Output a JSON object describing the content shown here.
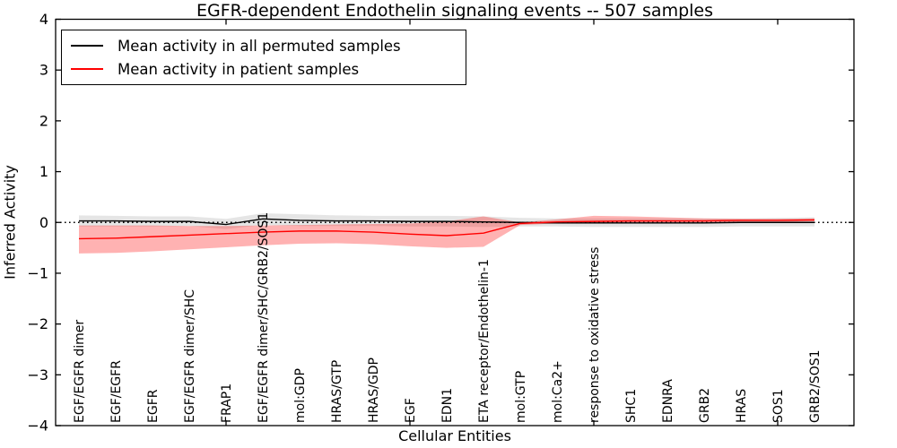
{
  "chart_data": {
    "type": "line",
    "title": "EGFR-dependent Endothelin signaling events -- 507 samples",
    "xlabel": "Cellular Entities",
    "ylabel": "Inferred Activity",
    "ylim": [
      -4,
      4
    ],
    "ytick_labels": [
      "4",
      "3",
      "2",
      "1",
      "0",
      "−1",
      "−2",
      "−3",
      "−4"
    ],
    "ytick_values": [
      4,
      3,
      2,
      1,
      0,
      -1,
      -2,
      -3,
      -4
    ],
    "grid": false,
    "legend_position": "upper left",
    "zero_line": {
      "y": 0,
      "style": "dotted",
      "color": "#000000"
    },
    "categories": [
      "EGF/EGFR dimer",
      "EGF/EGFR",
      "EGFR",
      "EGF/EGFR dimer/SHC",
      "FRAP1",
      "EGF/EGFR dimer/SHC/GRB2/SOS1",
      "mol:GDP",
      "HRAS/GTP",
      "HRAS/GDP",
      "EGF",
      "EDN1",
      "ETA receptor/Endothelin-1",
      "mol:GTP",
      "mol:Ca2+",
      "response to oxidative stress",
      "SHC1",
      "EDNRA",
      "GRB2",
      "HRAS",
      "SOS1",
      "GRB2/SOS1"
    ],
    "series": [
      {
        "name": "permuted",
        "label": "Mean activity in all permuted samples",
        "color": "#000000",
        "band_color": "rgba(0,0,0,0.10)",
        "values": [
          0.03,
          0.03,
          0.02,
          0.02,
          -0.04,
          0.07,
          0.04,
          0.03,
          0.03,
          0.02,
          0.02,
          0.01,
          0.0,
          -0.01,
          -0.01,
          -0.01,
          -0.01,
          -0.01,
          0.0,
          0.0,
          0.0
        ],
        "band_upper": [
          0.14,
          0.13,
          0.12,
          0.12,
          0.07,
          0.18,
          0.16,
          0.14,
          0.13,
          0.13,
          0.13,
          0.12,
          0.09,
          0.08,
          0.08,
          0.08,
          0.08,
          0.08,
          0.08,
          0.09,
          0.1
        ],
        "band_lower": [
          -0.08,
          -0.08,
          -0.08,
          -0.07,
          -0.13,
          -0.05,
          -0.07,
          -0.07,
          -0.07,
          -0.08,
          -0.08,
          -0.09,
          -0.08,
          -0.08,
          -0.09,
          -0.09,
          -0.09,
          -0.09,
          -0.08,
          -0.08,
          -0.08
        ]
      },
      {
        "name": "patient",
        "label": "Mean activity in patient samples",
        "color": "#ff0000",
        "band_color": "rgba(255,0,0,0.30)",
        "values": [
          -0.32,
          -0.31,
          -0.28,
          -0.25,
          -0.22,
          -0.19,
          -0.17,
          -0.17,
          -0.19,
          -0.23,
          -0.26,
          -0.21,
          -0.02,
          0.01,
          0.02,
          0.03,
          0.03,
          0.03,
          0.04,
          0.04,
          0.05
        ],
        "band_upper": [
          -0.06,
          -0.06,
          -0.06,
          -0.07,
          -0.07,
          -0.06,
          -0.05,
          -0.04,
          -0.03,
          -0.02,
          0.02,
          0.12,
          0.0,
          0.06,
          0.13,
          0.12,
          0.1,
          0.08,
          0.07,
          0.07,
          0.08
        ],
        "band_lower": [
          -0.61,
          -0.6,
          -0.57,
          -0.53,
          -0.49,
          -0.45,
          -0.42,
          -0.41,
          -0.43,
          -0.47,
          -0.5,
          -0.48,
          -0.05,
          -0.02,
          -0.01,
          -0.01,
          -0.01,
          0.0,
          0.0,
          0.01,
          0.02
        ]
      }
    ]
  }
}
